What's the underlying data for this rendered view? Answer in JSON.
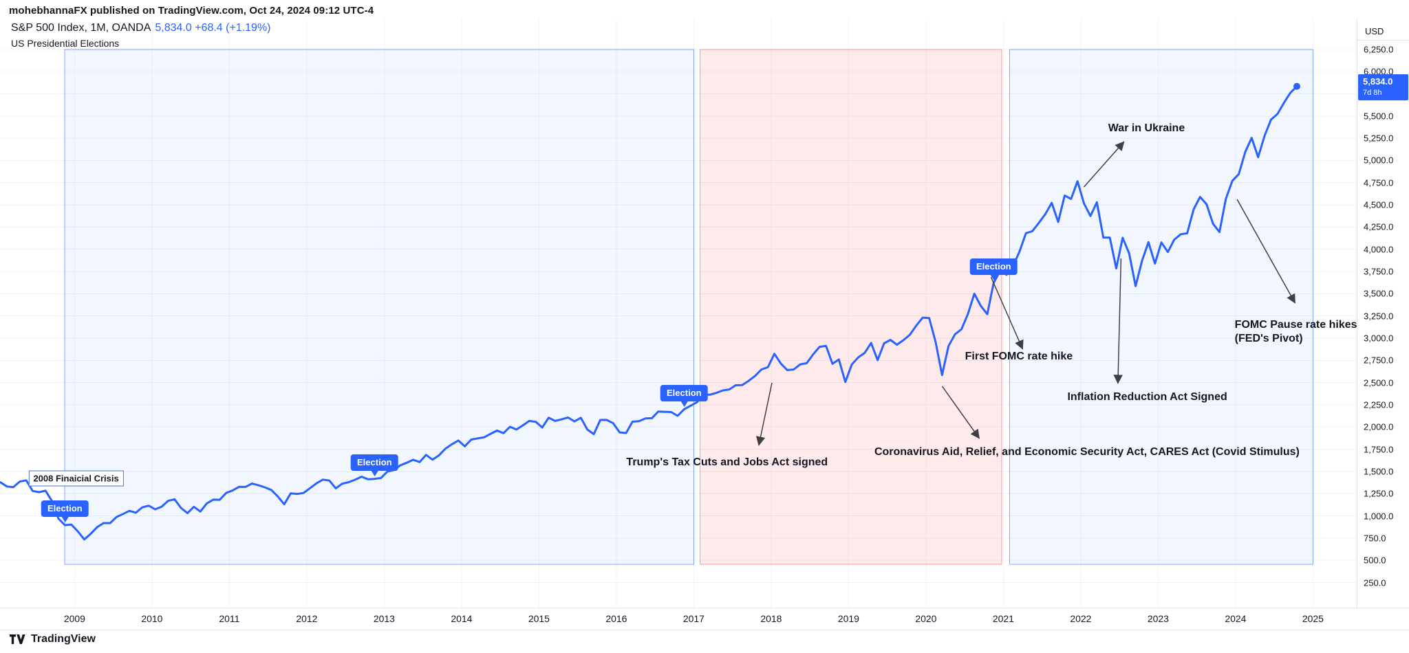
{
  "header": {
    "publisher_line": "mohebhannaFX published on TradingView.com, Oct 24, 2024 09:12 UTC-4"
  },
  "legend": {
    "symbol_title": "S&P 500 Index, 1M, OANDA",
    "price": "5,834.0",
    "change": "+68.4 (+1.19%)",
    "subtitle": "US Presidential Elections"
  },
  "price_axis": {
    "currency_label": "USD",
    "ticks": [
      "6,250.0",
      "6,000.0",
      "5,750.0",
      "5,500.0",
      "5,250.0",
      "5,000.0",
      "4,750.0",
      "4,500.0",
      "4,250.0",
      "4,000.0",
      "3,750.0",
      "3,500.0",
      "3,250.0",
      "3,000.0",
      "2,750.0",
      "2,500.0",
      "2,250.0",
      "2,000.0",
      "1,750.0",
      "1,500.0",
      "1,250.0",
      "1,000.0",
      "750.0",
      "500.0",
      "250.0"
    ],
    "tag": {
      "price": "5,834.0",
      "countdown": "7d 8h"
    }
  },
  "time_axis": {
    "ticks": [
      "2009",
      "2010",
      "2011",
      "2012",
      "2013",
      "2014",
      "2015",
      "2016",
      "2017",
      "2018",
      "2019",
      "2020",
      "2021",
      "2022",
      "2023",
      "2024",
      "2025"
    ]
  },
  "footer": {
    "brand": "TradingView"
  },
  "colors": {
    "accent_blue": "#2962ff",
    "line": "#2962ff",
    "grid": "#f0f3fa",
    "axis_line": "#e0e3eb",
    "region_blue_fill": "rgba(41,98,255,0.06)",
    "region_blue_border": "rgba(41,98,255,0.55)",
    "region_red_fill": "rgba(242,54,69,0.11)",
    "region_red_border": "rgba(242,54,69,0.45)",
    "annotation_text": "#131722",
    "arrow": "#3c4043"
  },
  "chart_data": {
    "type": "line",
    "title": "S&P 500 Index, 1M, OANDA — US Presidential Elections",
    "ylabel": "USD",
    "ylim": [
      250,
      6250
    ],
    "y_tick_step": 250,
    "xlim_years": [
      2008,
      2025.6
    ],
    "grid": true,
    "frequency": "monthly",
    "series_start": {
      "year": 2008,
      "month": 1
    },
    "monthly_closes": [
      1378,
      1331,
      1323,
      1386,
      1400,
      1280,
      1267,
      1283,
      1166,
      969,
      896,
      903,
      826,
      735,
      798,
      873,
      919,
      919,
      987,
      1021,
      1057,
      1036,
      1096,
      1115,
      1074,
      1104,
      1169,
      1187,
      1089,
      1031,
      1102,
      1049,
      1141,
      1183,
      1181,
      1258,
      1286,
      1327,
      1326,
      1364,
      1345,
      1321,
      1292,
      1219,
      1131,
      1253,
      1247,
      1258,
      1312,
      1366,
      1408,
      1398,
      1310,
      1362,
      1379,
      1407,
      1441,
      1412,
      1416,
      1426,
      1498,
      1515,
      1569,
      1598,
      1631,
      1606,
      1686,
      1633,
      1682,
      1757,
      1806,
      1848,
      1783,
      1859,
      1872,
      1884,
      1924,
      1960,
      1931,
      2003,
      1972,
      2018,
      2068,
      2059,
      1995,
      2105,
      2068,
      2086,
      2107,
      2063,
      2104,
      1972,
      1920,
      2079,
      2080,
      2044,
      1940,
      1932,
      2060,
      2065,
      2097,
      2099,
      2174,
      2171,
      2168,
      2126,
      2199,
      2239,
      2279,
      2364,
      2363,
      2384,
      2412,
      2423,
      2470,
      2472,
      2519,
      2575,
      2648,
      2674,
      2824,
      2714,
      2641,
      2648,
      2705,
      2718,
      2816,
      2902,
      2914,
      2712,
      2760,
      2507,
      2704,
      2784,
      2834,
      2946,
      2752,
      2942,
      2980,
      2926,
      2977,
      3038,
      3141,
      3231,
      3226,
      2954,
      2585,
      2912,
      3044,
      3100,
      3271,
      3500,
      3363,
      3270,
      3622,
      3756,
      3714,
      3811,
      3973,
      4181,
      4204,
      4298,
      4395,
      4523,
      4308,
      4605,
      4567,
      4766,
      4516,
      4374,
      4530,
      4132,
      4132,
      3785,
      4130,
      3955,
      3586,
      3872,
      4080,
      3840,
      4077,
      3970,
      4109,
      4169,
      4180,
      4450,
      4589,
      4508,
      4288,
      4194,
      4568,
      4770,
      4846,
      5096,
      5254,
      5036,
      5278,
      5460,
      5522,
      5648,
      5762,
      5834
    ],
    "last_point": {
      "price": 5834.0,
      "change": 68.4,
      "change_pct": 1.19,
      "date_label": "Oct 24, 2024"
    },
    "regions": [
      {
        "name": "obama-terms-span",
        "from": 2008.87,
        "to": 2017.0,
        "party": "blue"
      },
      {
        "name": "trump-term-span",
        "from": 2017.08,
        "to": 2020.98,
        "party": "red"
      },
      {
        "name": "biden-term-span",
        "from": 2021.08,
        "to": 2025.0,
        "party": "blue"
      }
    ],
    "election_label": "Election",
    "election_markers": [
      {
        "t": 2008.875,
        "p": 896
      },
      {
        "t": 2012.875,
        "p": 1416
      },
      {
        "t": 2016.875,
        "p": 2199
      },
      {
        "t": 2020.875,
        "p": 3622
      }
    ],
    "crisis_label": {
      "text": "2008 Finaicial Crisis",
      "t": 2009.02,
      "p": 1422
    },
    "annotations": [
      {
        "id": "trump-tax-cuts",
        "text": "Trump's Tax Cuts and Jobs Act signed",
        "t": 2017.43,
        "p": 1600,
        "arrow": {
          "from_t": 2018.01,
          "from_p": 2497,
          "to_t": 2017.84,
          "to_p": 1793
        }
      },
      {
        "id": "cares-act",
        "text": "Coronavirus Aid, Relief, and Economic Security Act, CARES Act (Covid Stimulus)",
        "t": 2022.08,
        "p": 1716,
        "arrow": {
          "from_t": 2020.21,
          "from_p": 2458,
          "to_t": 2020.69,
          "to_p": 1871
        }
      },
      {
        "id": "first-fomc-rate-hike",
        "text": "First FOMC rate hike",
        "t": 2021.2,
        "p": 2791,
        "arrow": {
          "from_t": 2020.84,
          "from_p": 3688,
          "to_t": 2021.25,
          "to_p": 2876
        }
      },
      {
        "id": "war-in-ukraine",
        "text": "War in Ukraine",
        "t": 2022.85,
        "p": 5359,
        "arrow": {
          "from_t": 2022.04,
          "from_p": 4701,
          "to_t": 2022.56,
          "to_p": 5212
        }
      },
      {
        "id": "inflation-reduction-act",
        "text": "Inflation Reduction Act Signed",
        "t": 2022.86,
        "p": 2335,
        "arrow": {
          "from_t": 2022.52,
          "from_p": 3897,
          "to_t": 2022.48,
          "to_p": 2489
        }
      },
      {
        "id": "fomc-pause",
        "text": "FOMC Pause rate hikes\n(FED's Pivot)",
        "t": 2024.78,
        "p": 3069,
        "arrow": {
          "from_t": 2024.02,
          "from_p": 4562,
          "to_t": 2024.77,
          "to_p": 3394
        }
      }
    ]
  }
}
